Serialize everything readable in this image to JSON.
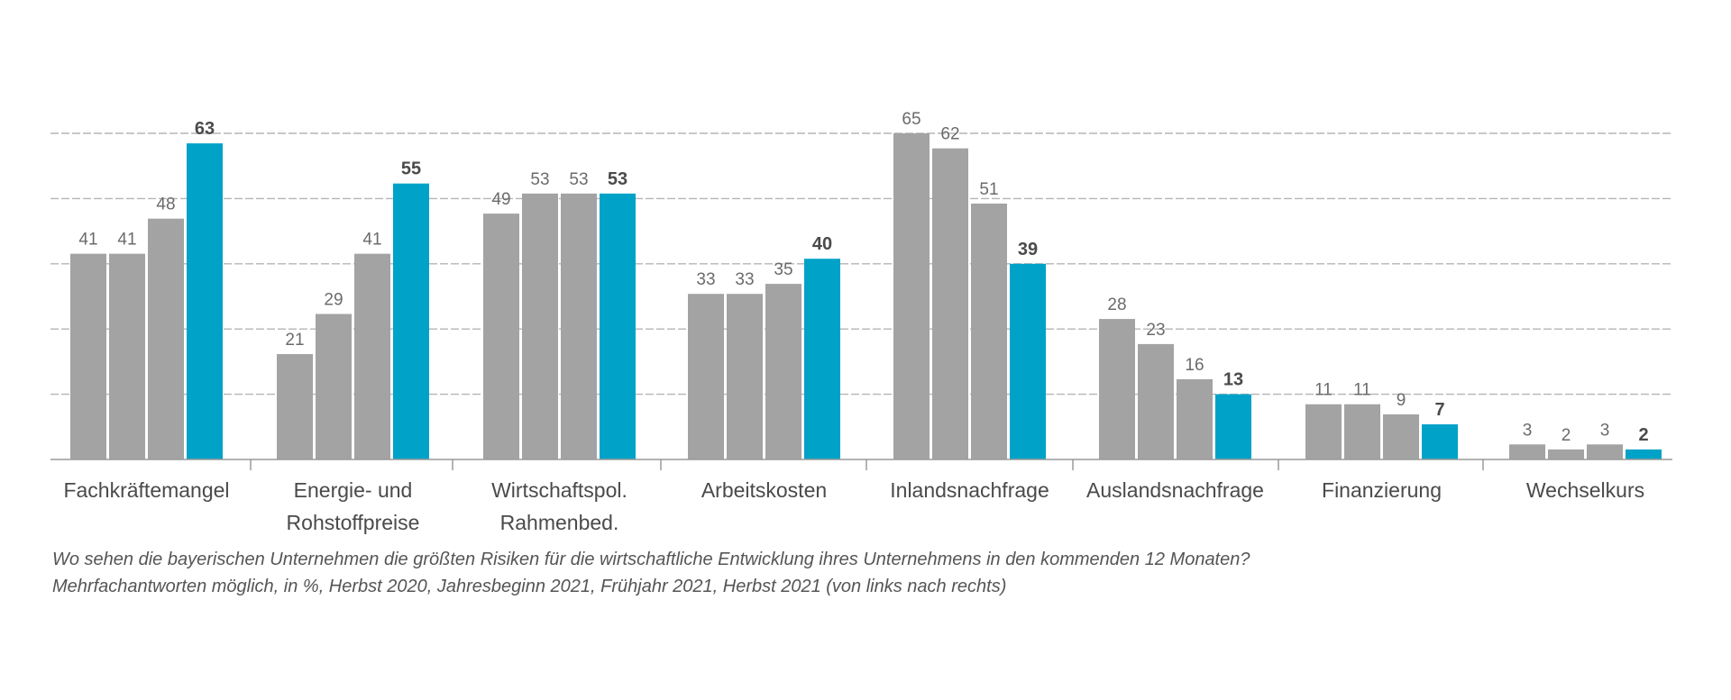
{
  "chart_data": {
    "type": "bar",
    "categories": [
      [
        "Fachkräftemangel"
      ],
      [
        "Energie- und",
        "Rohstoffpreise"
      ],
      [
        "Wirtschaftspol.",
        "Rahmenbed."
      ],
      [
        "Arbeitskosten"
      ],
      [
        "Inlandsnachfrage"
      ],
      [
        "Auslandsnachfrage"
      ],
      [
        "Finanzierung"
      ],
      [
        "Wechselkurs"
      ]
    ],
    "series": [
      {
        "values": [
          41,
          21,
          49,
          33,
          65,
          28,
          11,
          3
        ]
      },
      {
        "values": [
          41,
          29,
          53,
          33,
          62,
          23,
          11,
          2
        ]
      },
      {
        "values": [
          48,
          41,
          53,
          35,
          51,
          16,
          9,
          3
        ]
      },
      {
        "values": [
          63,
          55,
          53,
          40,
          39,
          13,
          7,
          2
        ]
      }
    ],
    "colors": {
      "earlier": "#a3a3a3",
      "latest": "#00a2c7"
    },
    "ylim": [
      0,
      70
    ],
    "gridlines": [
      13,
      26,
      39,
      52,
      65
    ],
    "grid": true,
    "legend": "none"
  },
  "caption": {
    "line1": "Wo sehen die bayerischen Unternehmen die größten Risiken für die wirtschaftliche Entwicklung ihres Unternehmens in den kommenden 12 Monaten?",
    "line2": "Mehrfachantworten möglich, in %, Herbst 2020, Jahresbeginn 2021, Frühjahr 2021, Herbst 2021 (von links nach rechts)"
  }
}
